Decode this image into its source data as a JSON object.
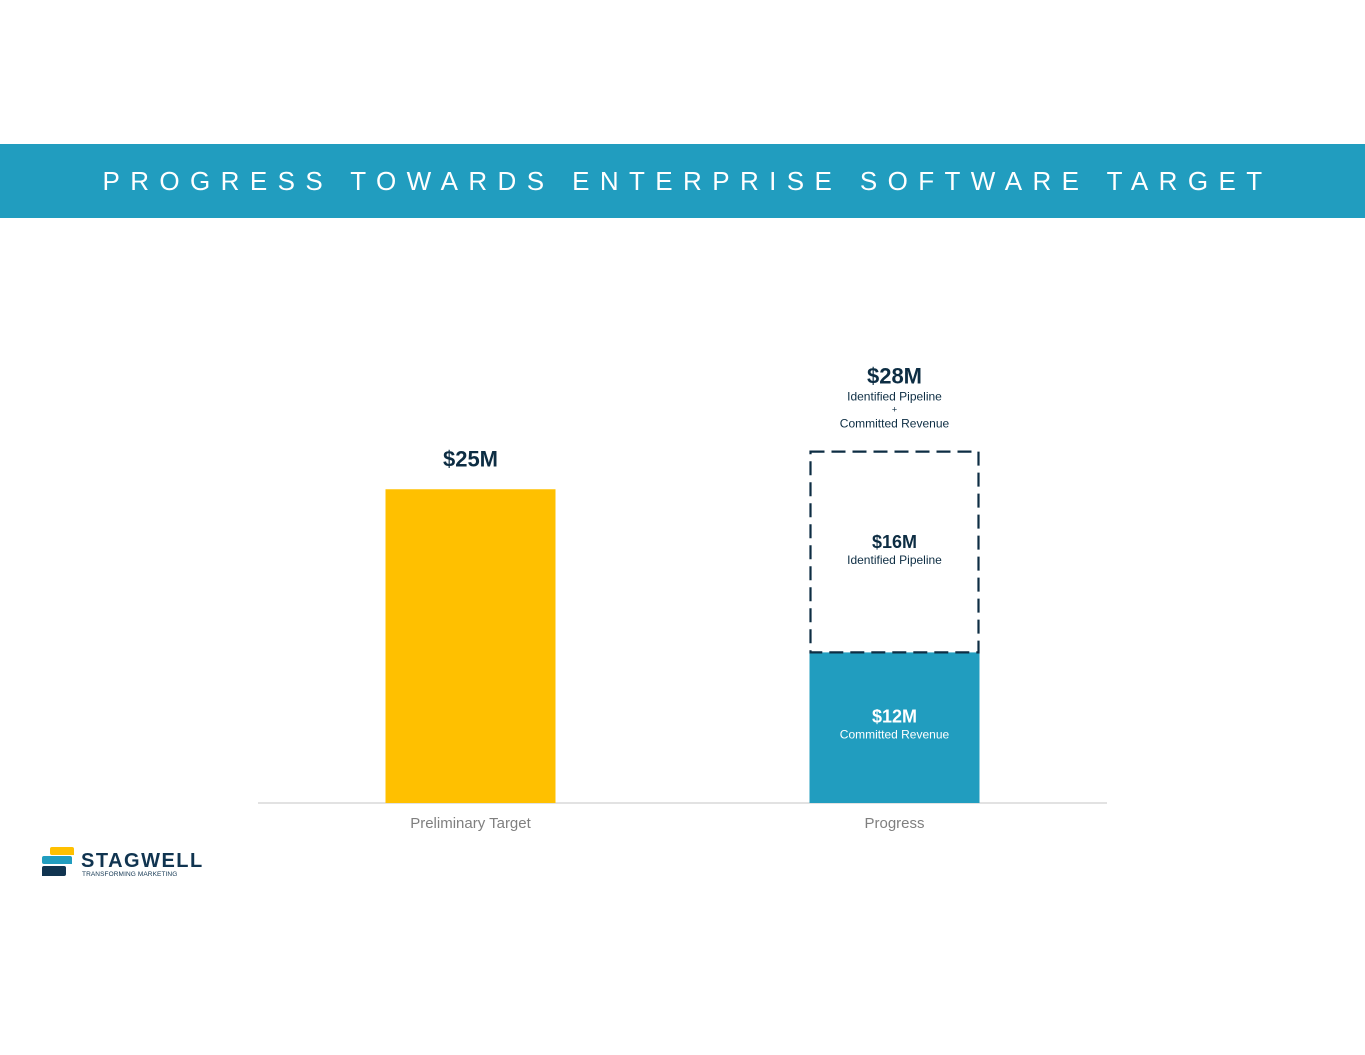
{
  "title": "PROGRESS TOWARDS ENTERPRISE SOFTWARE TARGET",
  "colors": {
    "banner": "#219dbf",
    "target": "#ffc000",
    "committed": "#219dbf",
    "dark": "#0d2d43",
    "axis": "#d9d9d9",
    "category_text": "#7f7f7f"
  },
  "chart_data": {
    "type": "bar",
    "stacked": true,
    "title": "",
    "xlabel": "",
    "ylabel": "",
    "categories": [
      "Preliminary Target",
      "Progress"
    ],
    "series": [
      {
        "name": "Preliminary Target",
        "values": [
          25,
          0
        ],
        "color": "#ffc000",
        "style": "solid"
      },
      {
        "name": "Committed Revenue",
        "values": [
          0,
          12
        ],
        "color": "#219dbf",
        "style": "solid"
      },
      {
        "name": "Identified Pipeline",
        "values": [
          0,
          16
        ],
        "color": "#0d2d43",
        "style": "dashed-outline"
      }
    ],
    "data_labels": {
      "target_total": "$25M",
      "progress_total": "$28M",
      "progress_total_line1": "Identified Pipeline",
      "progress_total_plus": "+",
      "progress_total_line2": "Committed Revenue",
      "pipeline_value": "$16M",
      "pipeline_label": "Identified Pipeline",
      "committed_value": "$12M",
      "committed_label": "Committed Revenue"
    },
    "axis": {
      "y_min": 0,
      "y_max": 28
    },
    "grid": false,
    "legend": "none"
  },
  "logo": {
    "name": "STAGWELL",
    "tagline": "TRANSFORMING MARKETING",
    "colors": {
      "yellow": "#ffc000",
      "blue": "#219dbf",
      "navy": "#103450"
    }
  }
}
